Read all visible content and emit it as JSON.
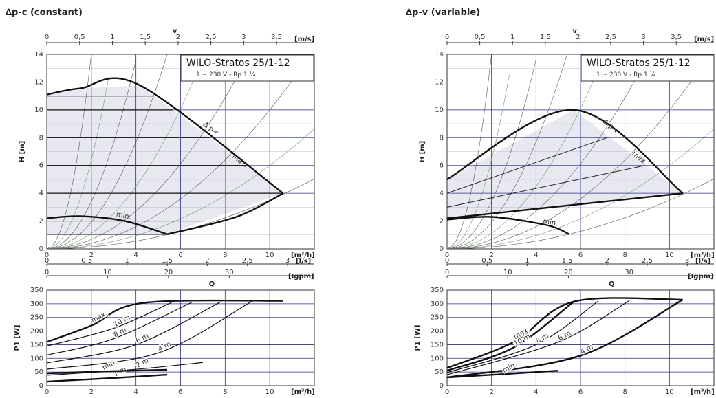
{
  "colors": {
    "grid_major": "#2b2b8c",
    "grid_minor": "#b8b8cc",
    "grid_olive": "#8b8b3a",
    "curve": "#111111",
    "system_curve_green": "#6f9a6f",
    "fill": "#e8e8f1"
  },
  "chart_data": [
    {
      "id": "left",
      "type": "line",
      "title": "∆p-c (constant)",
      "box": {
        "title": "WILO-Stratos 25/1-12",
        "subtitle": "1 ~ 230 V - Rp 1 ¼"
      },
      "head": {
        "ylabel": "H [m]",
        "ylim": [
          0,
          14
        ],
        "yticks": [
          "0",
          "2",
          "4",
          "6",
          "8",
          "10",
          "12",
          "14"
        ],
        "xlim": [
          0,
          12
        ],
        "xticks": [
          "0",
          "2",
          "4",
          "6",
          "8",
          "10"
        ],
        "xunit": "[m³/h]",
        "v_label": "v",
        "v_unit": "[m/s]",
        "v_ticks": [
          "0",
          "0,5",
          "1",
          "1,5",
          "2",
          "2,5",
          "3",
          "3,5"
        ],
        "ls_unit": "[l/s]",
        "ls_ticks": [
          "0",
          "0,5",
          "1",
          "1,5",
          "2",
          "2,5",
          "3"
        ],
        "igpm_unit": "[Igpm]",
        "igpm_ticks": [
          "0",
          "10",
          "20",
          "30"
        ],
        "q_label": "Q",
        "envelope": [
          [
            0,
            11.1
          ],
          [
            1.5,
            11.55
          ],
          [
            4.2,
            11.75
          ],
          [
            10.6,
            4.0
          ],
          [
            5.4,
            1.05
          ],
          [
            0,
            1.05
          ]
        ],
        "max_curve": [
          [
            0,
            11.1
          ],
          [
            1.5,
            11.55
          ],
          [
            4.2,
            11.75
          ],
          [
            10.6,
            4.0
          ]
        ],
        "min_curve": [
          [
            0,
            2.2
          ],
          [
            1.5,
            2.35
          ],
          [
            3.5,
            2.0
          ],
          [
            5.4,
            1.05
          ]
        ],
        "lower_edge": [
          [
            5.4,
            1.05
          ],
          [
            8.5,
            2.3
          ],
          [
            10.6,
            4.0
          ]
        ],
        "labels": {
          "dp": "∆ p-c",
          "max": "max.",
          "min": "min."
        }
      },
      "power": {
        "ylabel": "P1 [W]",
        "ylim": [
          0,
          350
        ],
        "yticks": [
          "0",
          "50",
          "100",
          "150",
          "200",
          "250",
          "300",
          "350"
        ],
        "xlim": [
          0,
          12
        ],
        "xticks": [
          "0",
          "2",
          "4",
          "6",
          "8",
          "10"
        ],
        "xunit": "[m³/h]",
        "curves": [
          {
            "name": "max.",
            "points": [
              [
                0,
                160
              ],
              [
                2,
                220
              ],
              [
                4.3,
                303
              ],
              [
                10.6,
                311
              ]
            ],
            "bold": true
          },
          {
            "name": "10 m",
            "points": [
              [
                0,
                145
              ],
              [
                3,
                210
              ],
              [
                5.6,
                305
              ]
            ]
          },
          {
            "name": "8 m",
            "points": [
              [
                0,
                112
              ],
              [
                3,
                172
              ],
              [
                6.5,
                305
              ]
            ]
          },
          {
            "name": "6 m",
            "points": [
              [
                0,
                83
              ],
              [
                4,
                150
              ],
              [
                7.8,
                307
              ]
            ]
          },
          {
            "name": "4 m",
            "points": [
              [
                0,
                60
              ],
              [
                5,
                120
              ],
              [
                9.2,
                309
              ]
            ]
          },
          {
            "name": "2 m",
            "points": [
              [
                0,
                38
              ],
              [
                4,
                60
              ],
              [
                7,
                85
              ]
            ]
          },
          {
            "name": "1 m",
            "points": [
              [
                0,
                15
              ],
              [
                3,
                28
              ],
              [
                5.4,
                40
              ]
            ],
            "bold": true
          },
          {
            "name": "min.",
            "points": [
              [
                0,
                45
              ],
              [
                2.5,
                52
              ],
              [
                5.4,
                58
              ]
            ],
            "bold": true
          }
        ]
      }
    },
    {
      "id": "right",
      "type": "line",
      "title": "∆p-v (variable)",
      "box": {
        "title": "WILO-Stratos 25/1-12",
        "subtitle": "1 ~ 230 V - Rp 1 ¼"
      },
      "head": {
        "ylabel": "H [m]",
        "ylim": [
          0,
          14
        ],
        "yticks": [
          "0",
          "2",
          "4",
          "6",
          "8",
          "10",
          "12",
          "14"
        ],
        "xlim": [
          0,
          12
        ],
        "xticks": [
          "0",
          "2",
          "4",
          "6",
          "8",
          "10"
        ],
        "xunit": "[m³/h]",
        "v_label": "v",
        "v_unit": "[m/s]",
        "v_ticks": [
          "0",
          "0,5",
          "1",
          "1,5",
          "2",
          "2,5",
          "3",
          "3,5"
        ],
        "ls_unit": "[l/s]",
        "ls_ticks": [
          "0",
          "0,5",
          "1",
          "1,5",
          "2",
          "2,5",
          "3"
        ],
        "igpm_unit": "[Igpm]",
        "igpm_ticks": [
          "0",
          "10",
          "20",
          "30"
        ],
        "q_label": "Q",
        "envelope": [
          [
            0,
            5.0
          ],
          [
            5.7,
            10.0
          ],
          [
            10.6,
            4.0
          ],
          [
            0,
            2.2
          ]
        ],
        "max_curve": [
          [
            0,
            5.0
          ],
          [
            5.7,
            10.0
          ],
          [
            10.6,
            4.0
          ]
        ],
        "min_curve": [
          [
            0,
            2.1
          ],
          [
            2,
            2.3
          ],
          [
            4.5,
            1.7
          ],
          [
            5.5,
            1.05
          ]
        ],
        "lower_edge": [
          [
            0,
            2.2
          ],
          [
            10.6,
            4.0
          ]
        ],
        "inner_lines": [
          [
            [
              0,
              4.0
            ],
            [
              7.2,
              8.0
            ]
          ],
          [
            [
              0,
              3.0
            ],
            [
              8.9,
              6.0
            ]
          ]
        ],
        "labels": {
          "dp": "∆ p-v",
          "max": "max.",
          "min": "min."
        }
      },
      "power": {
        "ylabel": "P1 [W]",
        "ylim": [
          0,
          350
        ],
        "yticks": [
          "0",
          "50",
          "100",
          "150",
          "200",
          "250",
          "300",
          "350"
        ],
        "xlim": [
          0,
          12
        ],
        "xticks": [
          "0",
          "2",
          "4",
          "6",
          "8",
          "10"
        ],
        "xunit": "[m³/h]",
        "curves": [
          {
            "name": "max.",
            "points": [
              [
                0,
                65
              ],
              [
                3,
                160
              ],
              [
                5.7,
                308
              ],
              [
                10.6,
                315
              ]
            ],
            "bold": true
          },
          {
            "name": "10 m",
            "points": [
              [
                0,
                55
              ],
              [
                3,
                140
              ],
              [
                5.7,
                308
              ]
            ],
            "bold": true
          },
          {
            "name": "8 m",
            "points": [
              [
                0,
                48
              ],
              [
                4,
                150
              ],
              [
                6.8,
                310
              ]
            ]
          },
          {
            "name": "6 m",
            "points": [
              [
                0,
                40
              ],
              [
                5,
                160
              ],
              [
                8.2,
                312
              ]
            ]
          },
          {
            "name": "4 m",
            "points": [
              [
                0,
                30
              ],
              [
                6,
                110
              ],
              [
                10.6,
                315
              ]
            ],
            "bold": true
          },
          {
            "name": "min.",
            "points": [
              [
                0,
                30
              ],
              [
                2.5,
                42
              ],
              [
                5,
                55
              ]
            ],
            "bold": true
          }
        ]
      }
    }
  ]
}
